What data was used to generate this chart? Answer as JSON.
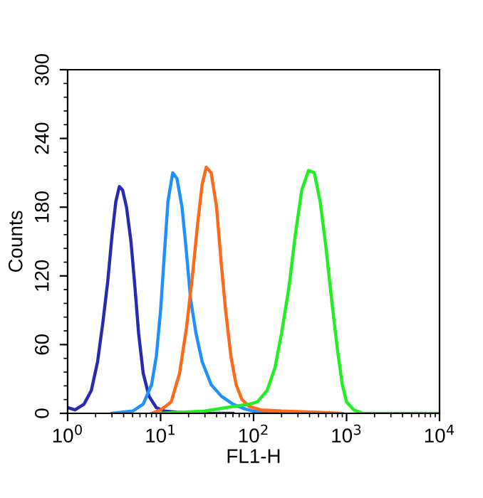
{
  "chart_data": {
    "type": "line",
    "xlabel": "FL1-H",
    "ylabel": "Counts",
    "log": "x",
    "xlim": [
      1,
      10000
    ],
    "ylim": [
      0,
      300
    ],
    "xticks": [
      {
        "value": 1,
        "label": "10$^{0}$"
      },
      {
        "value": 10,
        "label": "10$^{1}$"
      },
      {
        "value": 100,
        "label": "10$^{2}$"
      },
      {
        "value": 1000,
        "label": "10$^{3}$"
      },
      {
        "value": 10000,
        "label": "10$^{4}$"
      }
    ],
    "yticks": [
      0,
      60,
      120,
      180,
      240,
      300
    ],
    "grid": false,
    "legend": false,
    "marker": "none",
    "line_style": "solid",
    "series": [
      {
        "color": "#2a2ab0",
        "x": [
          1,
          1.2,
          1.5,
          1.8,
          2.1,
          2.4,
          2.7,
          3.0,
          3.3,
          3.6,
          3.9,
          4.3,
          4.8,
          5.3,
          5.8,
          6.5,
          7.5,
          9,
          11,
          15,
          25,
          60
        ],
        "values": [
          5,
          3,
          8,
          20,
          45,
          80,
          115,
          155,
          185,
          198,
          195,
          180,
          150,
          110,
          70,
          35,
          15,
          5,
          2,
          1,
          0,
          0
        ]
      },
      {
        "color": "#1e90ff",
        "x": [
          3,
          5,
          6.5,
          8,
          9,
          10,
          11,
          12,
          13.5,
          15,
          17,
          19,
          21,
          24,
          28,
          35,
          45,
          60,
          80,
          100,
          200
        ],
        "values": [
          0,
          2,
          8,
          25,
          50,
          90,
          140,
          185,
          210,
          205,
          180,
          140,
          100,
          70,
          45,
          25,
          15,
          8,
          4,
          2,
          0
        ]
      },
      {
        "color": "#ff6a1a",
        "x": [
          8,
          10,
          13,
          16,
          19,
          22,
          25,
          28,
          31,
          35,
          40,
          45,
          50,
          57,
          65,
          75,
          90,
          120,
          200,
          500,
          900
        ],
        "values": [
          0,
          3,
          10,
          35,
          75,
          120,
          165,
          200,
          215,
          210,
          180,
          130,
          90,
          50,
          25,
          12,
          6,
          3,
          2,
          1,
          0
        ]
      },
      {
        "color": "#22ee22",
        "x": [
          10,
          30,
          60,
          90,
          110,
          140,
          170,
          200,
          240,
          280,
          330,
          390,
          450,
          520,
          600,
          700,
          800,
          900,
          1000,
          1200,
          1500,
          10000
        ],
        "values": [
          0,
          2,
          6,
          8,
          10,
          20,
          40,
          70,
          110,
          155,
          195,
          212,
          210,
          185,
          145,
          95,
          55,
          25,
          10,
          3,
          0,
          0
        ]
      }
    ]
  }
}
